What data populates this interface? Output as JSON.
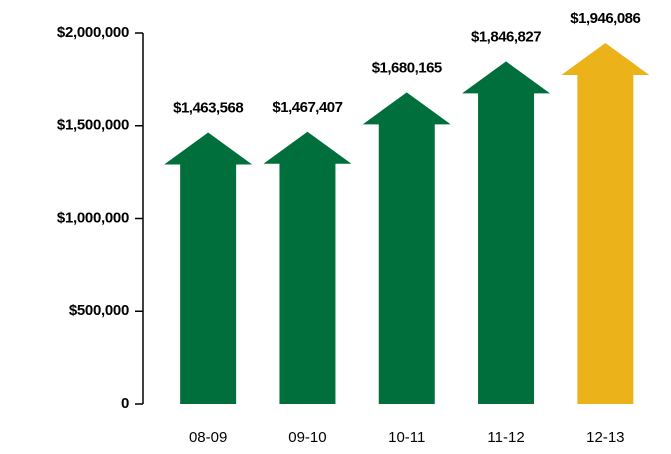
{
  "chart_data": {
    "type": "bar",
    "categories": [
      "08-09",
      "09-10",
      "10-11",
      "11-12",
      "12-13"
    ],
    "values": [
      1463568,
      1467407,
      1680165,
      1846827,
      1946086
    ],
    "value_labels": [
      "$1,463,568",
      "$1,467,407",
      "$1,680,165",
      "$1,846,827",
      "$1,946,086"
    ],
    "colors": [
      "#006f3c",
      "#006f3c",
      "#006f3c",
      "#006f3c",
      "#ebb319"
    ],
    "ylim": [
      0,
      2000000
    ],
    "yticks": [
      0,
      {
        "value": 500000,
        "label": "$500,000"
      },
      {
        "value": 1000000,
        "label": "$1,000,000"
      },
      {
        "value": 1500000,
        "label": "$1,500,000"
      },
      {
        "value": 2000000,
        "label": "$2,000,000"
      }
    ],
    "grid": false
  }
}
